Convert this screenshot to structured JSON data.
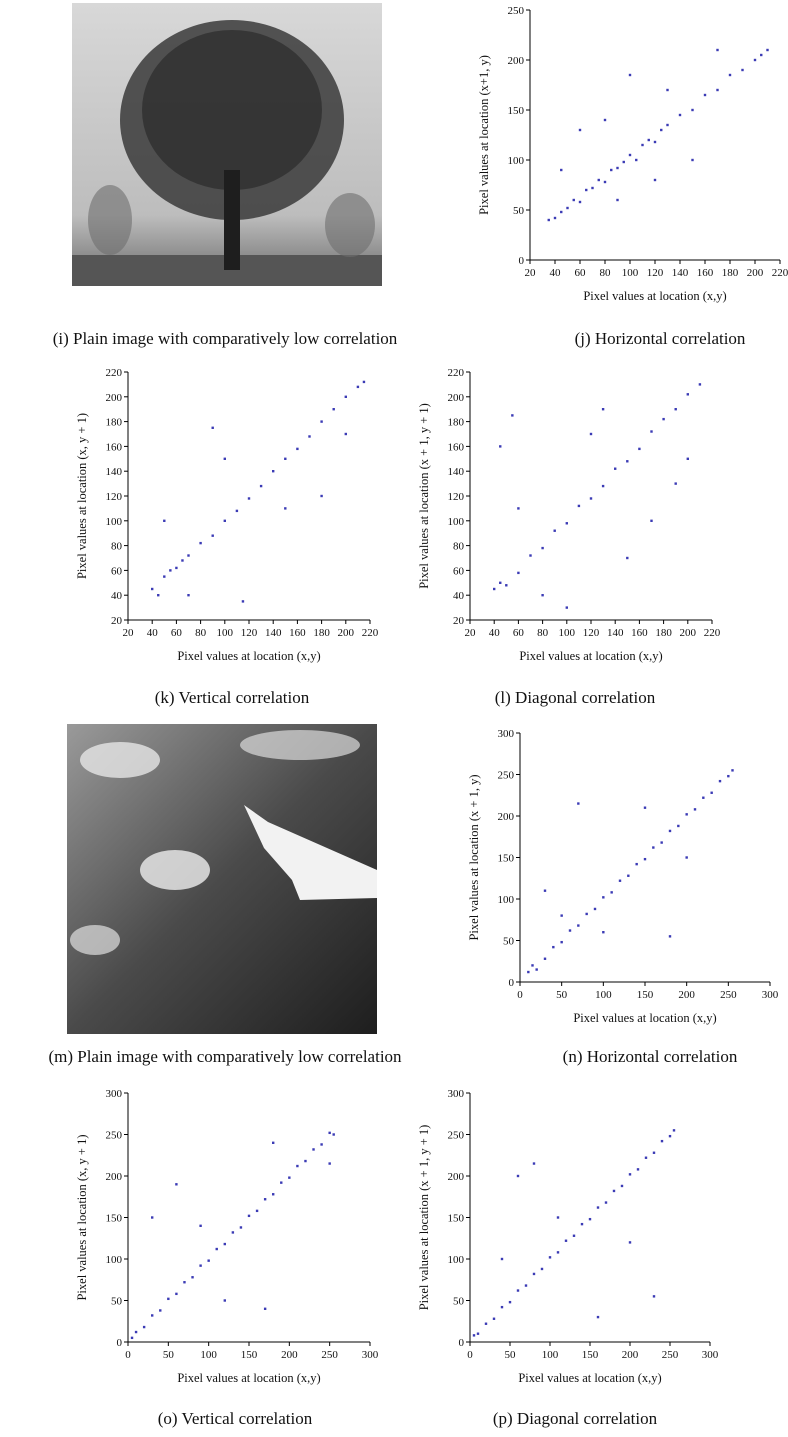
{
  "images": [
    {
      "caption": "(i) Plain image with comparatively low correlation"
    },
    {
      "caption": "(m) Plain image with comparatively low correlation"
    }
  ],
  "chart_data": [
    {
      "type": "scatter",
      "caption": "(j) Horizontal correlation",
      "xlabel": "Pixel values at location (x,y)",
      "ylabel": "Pixel values at location (x+1, y)",
      "color": "#3b3bb5",
      "xlim": [
        20,
        220
      ],
      "ylim": [
        0,
        250
      ],
      "xticks": [
        20,
        40,
        60,
        80,
        100,
        120,
        140,
        160,
        180,
        200,
        220
      ],
      "yticks": [
        0,
        50,
        100,
        150,
        200,
        250
      ],
      "x": [
        35,
        40,
        45,
        50,
        55,
        60,
        65,
        70,
        75,
        80,
        85,
        90,
        95,
        100,
        105,
        110,
        115,
        120,
        125,
        130,
        140,
        150,
        160,
        170,
        180,
        190,
        200,
        205,
        210,
        45,
        60,
        90,
        130,
        150,
        170,
        100,
        80,
        120
      ],
      "values": [
        40,
        42,
        48,
        52,
        60,
        58,
        70,
        72,
        80,
        78,
        90,
        92,
        98,
        105,
        100,
        115,
        120,
        118,
        130,
        135,
        145,
        150,
        165,
        170,
        185,
        190,
        200,
        205,
        210,
        90,
        130,
        60,
        170,
        100,
        210,
        185,
        140,
        80
      ]
    },
    {
      "type": "scatter",
      "caption": "(k) Vertical correlation",
      "xlabel": "Pixel values at location (x,y)",
      "ylabel": "Pixel values at location (x, y + 1)",
      "color": "#3b3bb5",
      "xlim": [
        20,
        220
      ],
      "ylim": [
        20,
        220
      ],
      "xticks": [
        20,
        40,
        60,
        80,
        100,
        120,
        140,
        160,
        180,
        200,
        220
      ],
      "yticks": [
        20,
        40,
        60,
        80,
        100,
        120,
        140,
        160,
        180,
        200,
        220
      ],
      "x": [
        40,
        45,
        50,
        55,
        60,
        65,
        70,
        80,
        90,
        100,
        110,
        120,
        130,
        140,
        150,
        160,
        170,
        180,
        190,
        200,
        210,
        215,
        50,
        70,
        100,
        115,
        150,
        180,
        200,
        90
      ],
      "values": [
        45,
        40,
        55,
        60,
        62,
        68,
        72,
        82,
        88,
        100,
        108,
        118,
        128,
        140,
        150,
        158,
        168,
        180,
        190,
        200,
        208,
        212,
        100,
        40,
        150,
        35,
        110,
        120,
        170,
        175
      ]
    },
    {
      "type": "scatter",
      "caption": "(l) Diagonal correlation",
      "xlabel": "Pixel values at location (x,y)",
      "ylabel": "Pixel values at location (x + 1, y + 1)",
      "color": "#3b3bb5",
      "xlim": [
        20,
        220
      ],
      "ylim": [
        20,
        220
      ],
      "xticks": [
        20,
        40,
        60,
        80,
        100,
        120,
        140,
        160,
        180,
        200,
        220
      ],
      "yticks": [
        20,
        40,
        60,
        80,
        100,
        120,
        140,
        160,
        180,
        200,
        220
      ],
      "x": [
        40,
        45,
        50,
        60,
        70,
        80,
        90,
        100,
        110,
        120,
        130,
        140,
        150,
        160,
        170,
        180,
        190,
        200,
        210,
        45,
        55,
        80,
        100,
        130,
        150,
        170,
        190,
        60,
        120,
        200
      ],
      "values": [
        45,
        50,
        48,
        58,
        72,
        78,
        92,
        98,
        112,
        118,
        128,
        142,
        148,
        158,
        172,
        182,
        190,
        202,
        210,
        160,
        185,
        40,
        30,
        190,
        70,
        100,
        130,
        110,
        170,
        150
      ]
    },
    {
      "type": "scatter",
      "caption": "(n) Horizontal correlation",
      "xlabel": "Pixel values at location (x,y)",
      "ylabel": "Pixel values at location (x + 1, y)",
      "color": "#3b3bb5",
      "xlim": [
        0,
        300
      ],
      "ylim": [
        0,
        300
      ],
      "xticks": [
        0,
        50,
        100,
        150,
        200,
        250,
        300
      ],
      "yticks": [
        0,
        50,
        100,
        150,
        200,
        250,
        300
      ],
      "x": [
        10,
        15,
        20,
        30,
        40,
        50,
        60,
        70,
        80,
        90,
        100,
        110,
        120,
        130,
        140,
        150,
        160,
        170,
        180,
        190,
        200,
        210,
        220,
        230,
        240,
        250,
        255,
        70,
        180,
        30,
        150,
        200,
        100,
        50
      ],
      "values": [
        12,
        20,
        15,
        28,
        42,
        48,
        62,
        68,
        82,
        88,
        102,
        108,
        122,
        128,
        142,
        148,
        162,
        168,
        182,
        188,
        202,
        208,
        222,
        228,
        242,
        248,
        255,
        215,
        55,
        110,
        210,
        150,
        60,
        80
      ]
    },
    {
      "type": "scatter",
      "caption": "(o) Vertical correlation",
      "xlabel": "Pixel values at location (x,y)",
      "ylabel": "Pixel values at location (x, y + 1)",
      "color": "#3b3bb5",
      "xlim": [
        0,
        300
      ],
      "ylim": [
        0,
        300
      ],
      "xticks": [
        0,
        50,
        100,
        150,
        200,
        250,
        300
      ],
      "yticks": [
        0,
        50,
        100,
        150,
        200,
        250,
        300
      ],
      "x": [
        5,
        10,
        20,
        30,
        40,
        50,
        60,
        70,
        80,
        90,
        100,
        110,
        120,
        130,
        140,
        150,
        160,
        170,
        180,
        190,
        200,
        210,
        220,
        230,
        240,
        250,
        255,
        30,
        60,
        180,
        120,
        170,
        250,
        90
      ],
      "values": [
        5,
        12,
        18,
        32,
        38,
        52,
        58,
        72,
        78,
        92,
        98,
        112,
        118,
        132,
        138,
        152,
        158,
        172,
        178,
        192,
        198,
        212,
        218,
        232,
        238,
        252,
        250,
        150,
        190,
        240,
        50,
        40,
        215,
        140
      ]
    },
    {
      "type": "scatter",
      "caption": "(p) Diagonal correlation",
      "xlabel": "Pixel values at location (x,y)",
      "ylabel": "Pixel values at location (x + 1, y + 1)",
      "color": "#3b3bb5",
      "xlim": [
        0,
        300
      ],
      "ylim": [
        0,
        300
      ],
      "xticks": [
        0,
        50,
        100,
        150,
        200,
        250,
        300
      ],
      "yticks": [
        0,
        50,
        100,
        150,
        200,
        250,
        300
      ],
      "x": [
        5,
        10,
        20,
        30,
        40,
        50,
        60,
        70,
        80,
        90,
        100,
        110,
        120,
        130,
        140,
        150,
        160,
        170,
        180,
        190,
        200,
        210,
        220,
        230,
        240,
        250,
        255,
        60,
        80,
        160,
        230,
        110,
        200,
        40
      ],
      "values": [
        8,
        10,
        22,
        28,
        42,
        48,
        62,
        68,
        82,
        88,
        102,
        108,
        122,
        128,
        142,
        148,
        162,
        168,
        182,
        188,
        202,
        208,
        222,
        228,
        242,
        248,
        255,
        200,
        215,
        30,
        55,
        150,
        120,
        100
      ]
    }
  ]
}
